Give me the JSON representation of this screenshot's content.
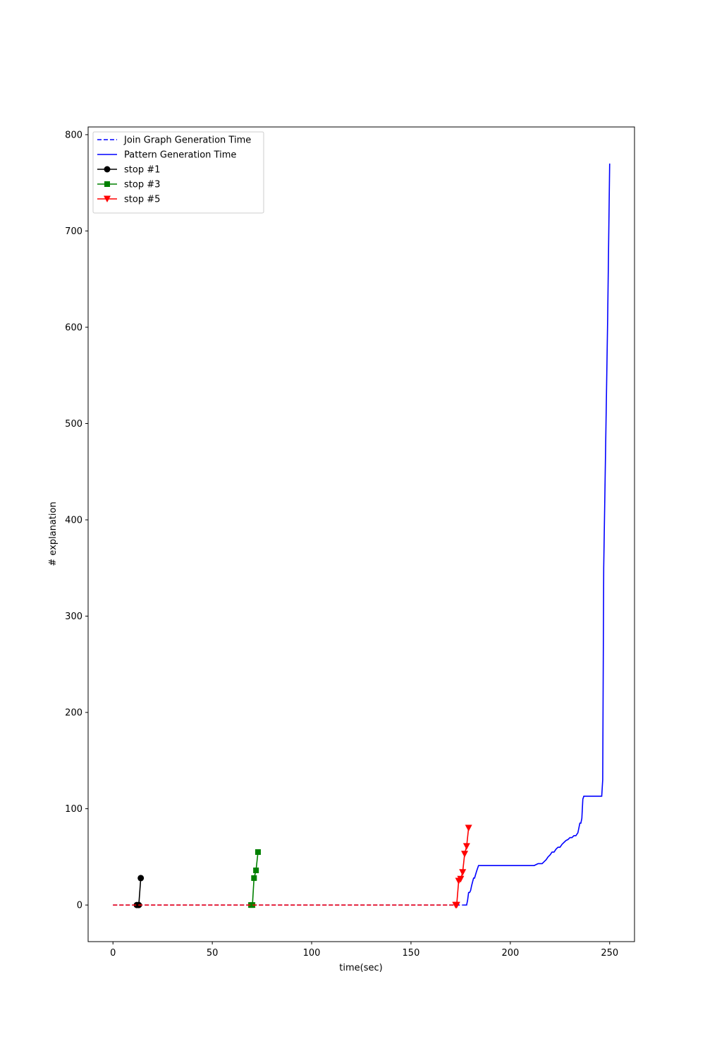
{
  "chart_data": {
    "type": "line",
    "title": "",
    "xlabel": "time(sec)",
    "ylabel": "# explanation",
    "xlim": [
      -12.5,
      262.5
    ],
    "ylim": [
      -38,
      808
    ],
    "xticks": [
      0,
      50,
      100,
      150,
      200,
      250
    ],
    "yticks": [
      0,
      100,
      200,
      300,
      400,
      500,
      600,
      700,
      800
    ],
    "grid": false,
    "legend_position": "upper-left",
    "series": [
      {
        "name": "Join Graph Generation Time",
        "color": "#0000ff",
        "style": "dashed",
        "marker": "none",
        "x": [
          0,
          176
        ],
        "y": [
          0,
          0
        ]
      },
      {
        "name": "Pattern Generation Time",
        "color": "#0000ff",
        "style": "solid",
        "marker": "none",
        "x": [
          176,
          178,
          178.5,
          179,
          179.5,
          180,
          180.5,
          181.5,
          182,
          183,
          184,
          212,
          213,
          214,
          215,
          216,
          217,
          218,
          219,
          220,
          221,
          222,
          223,
          224,
          225,
          226,
          227,
          228,
          229,
          230,
          231,
          232,
          233,
          234,
          235,
          235.5,
          236,
          236.5,
          237,
          238,
          246,
          246.5,
          247,
          248,
          249,
          250
        ],
        "y": [
          0,
          0,
          5,
          13,
          13,
          15,
          20,
          28,
          28,
          35,
          41,
          41,
          42,
          43,
          43,
          43,
          45,
          47,
          50,
          52,
          55,
          55,
          58,
          60,
          60,
          63,
          65,
          67,
          68,
          70,
          70,
          72,
          72,
          75,
          85,
          85,
          90,
          110,
          113,
          113,
          113,
          130,
          350,
          480,
          610,
          770
        ]
      },
      {
        "name": "stop #1",
        "color": "#000000",
        "style": "solid",
        "marker": "circle",
        "x": [
          12,
          13,
          14
        ],
        "y": [
          0,
          0,
          28
        ]
      },
      {
        "name": "stop #3",
        "color": "#008000",
        "style": "solid",
        "marker": "square",
        "x": [
          69.5,
          70.2,
          71,
          72,
          73
        ],
        "y": [
          0,
          0,
          28,
          36,
          55
        ]
      },
      {
        "name": "stop #5",
        "color": "#ff0000",
        "style": "solid",
        "marker": "triangle-down",
        "x": [
          172.5,
          173,
          174,
          175,
          176,
          177,
          178,
          179
        ],
        "y": [
          0,
          0,
          25,
          27,
          34,
          53,
          61,
          80
        ]
      },
      {
        "name": "",
        "color": "#ff0000",
        "style": "dashed",
        "marker": "none",
        "x": [
          0,
          172.5
        ],
        "y": [
          0,
          0
        ]
      }
    ]
  }
}
